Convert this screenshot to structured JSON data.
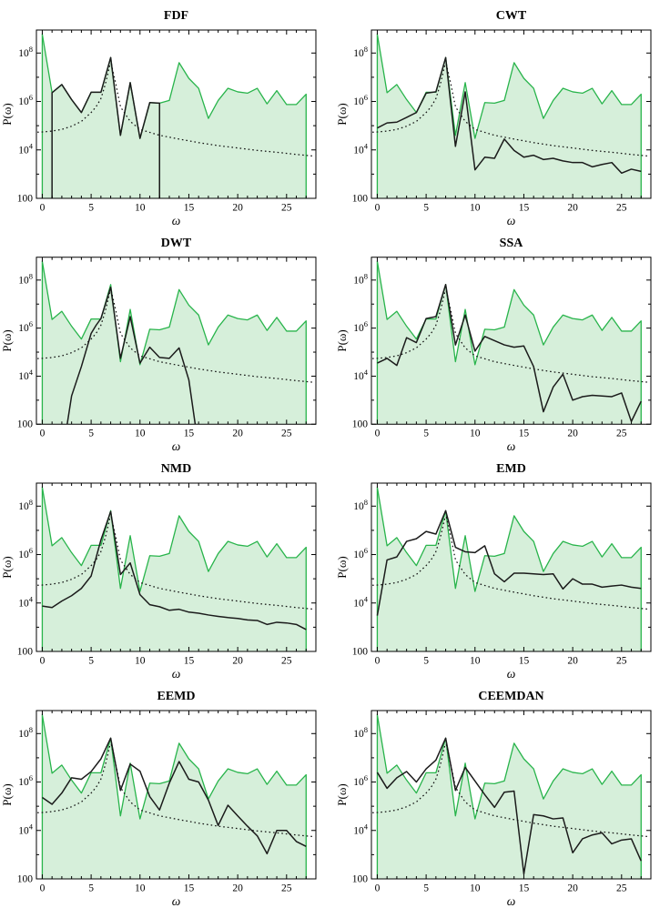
{
  "figure": {
    "description": "Comparison of power spectra P(omega) of components extracted by eight methods from a noisy signal",
    "background": "#ffffff"
  },
  "chart_data": {
    "type": "line",
    "layout": "4x2-grid",
    "xlabel": "ω",
    "ylabel": "P(ω)",
    "x_axis": {
      "min": -0.6,
      "max": 28.0,
      "major_ticks": [
        0,
        5,
        10,
        15,
        20,
        25
      ],
      "minor_tick_step": 1
    },
    "y_axis": {
      "scale": "log",
      "min_log10": 2,
      "max_log10": 8.95,
      "major_ticks": [
        {
          "log10": 2,
          "text": "100",
          "sup": ""
        },
        {
          "log10": 4,
          "text": "10",
          "sup": "4"
        },
        {
          "log10": 6,
          "text": "10",
          "sup": "6"
        },
        {
          "log10": 8,
          "text": "10",
          "sup": "8"
        }
      ],
      "minor_ticks_log10": [
        3,
        5,
        7
      ]
    },
    "colors": {
      "noisy_line": "#28b44b",
      "noisy_fill": "#d6efda",
      "component_line": "#1b1b1b",
      "reference_dotted": "#111111"
    },
    "shared_noisy_spectrum": {
      "name": "noisy signal spectrum (green filled)",
      "x": [
        0,
        1,
        2,
        3,
        4,
        5,
        6,
        7,
        8,
        9,
        10,
        11,
        12,
        13,
        14,
        15,
        16,
        17,
        18,
        19,
        20,
        21,
        22,
        23,
        24,
        25,
        26,
        27
      ],
      "y": [
        600000000.0,
        2300000.0,
        5000000.0,
        1200000.0,
        350000.0,
        2400000.0,
        2400000.0,
        65000000.0,
        40000.0,
        6000000.0,
        30000.0,
        900000.0,
        850000.0,
        1100000.0,
        40000000.0,
        9000000.0,
        3500000.0,
        200000.0,
        1100000.0,
        3500000.0,
        2500000.0,
        2200000.0,
        3500000.0,
        800000.0,
        2800000.0,
        750000.0,
        750000.0,
        2000000.0
      ]
    },
    "reference_curve": {
      "name": "theoretical component spectrum (dotted)",
      "style": "dotted",
      "x": [
        -0.5,
        0,
        1,
        2,
        3,
        4,
        5,
        5.5,
        6,
        6.5,
        7,
        7.5,
        8,
        9,
        10,
        12,
        14,
        16,
        18,
        20,
        22,
        24,
        26,
        27.9
      ],
      "y": [
        54000.0,
        55000.0,
        60000.0,
        70000.0,
        95000.0,
        150000.0,
        350000.0,
        600000.0,
        1300000.0,
        6000000.0,
        45000000.0,
        6000000.0,
        600000.0,
        150000.0,
        70000.0,
        40000.0,
        28000.0,
        20000.0,
        15000.0,
        12000.0,
        9500.0,
        8000.0,
        6500.0,
        5500.0
      ]
    },
    "panels": [
      {
        "title": "FDF",
        "component": {
          "x": [
            1,
            1,
            2,
            3,
            4,
            5,
            6,
            7,
            8,
            9,
            10,
            11,
            12,
            12
          ],
          "y": [
            100.0,
            2300000.0,
            5000000.0,
            1200000.0,
            350000.0,
            2400000.0,
            2400000.0,
            65000000.0,
            40000.0,
            6000000.0,
            30000.0,
            900000.0,
            850000.0,
            100.0
          ]
        }
      },
      {
        "title": "CWT",
        "component": {
          "x": [
            0,
            1,
            2,
            3,
            4,
            5,
            6,
            7,
            8,
            9,
            10,
            11,
            12,
            13,
            14,
            15,
            16,
            17,
            18,
            19,
            20,
            21,
            22,
            23,
            24,
            25,
            26,
            27
          ],
          "y": [
            80000.0,
            130000.0,
            140000.0,
            220000.0,
            350000.0,
            2200000.0,
            2500000.0,
            65000000.0,
            14000.0,
            2500000.0,
            1500.0,
            5000.0,
            4500.0,
            28000.0,
            9500.0,
            5000.0,
            6000.0,
            4000.0,
            4500.0,
            3500.0,
            3000.0,
            3000.0,
            2000.0,
            2500.0,
            3000.0,
            1100.0,
            1600.0,
            1300.0
          ]
        }
      },
      {
        "title": "DWT",
        "component": {
          "x": [
            2.55,
            3,
            4,
            5,
            5.5,
            6,
            7,
            8,
            9,
            10,
            11,
            12,
            13,
            14,
            15,
            15.65
          ],
          "y": [
            100.0,
            1500.0,
            25000.0,
            600000.0,
            1300000.0,
            2500000.0,
            50000000.0,
            55000.0,
            3000000.0,
            35000.0,
            160000.0,
            60000.0,
            55000.0,
            150000.0,
            7000.0,
            100.0
          ]
        }
      },
      {
        "title": "SSA",
        "component": {
          "x": [
            0,
            1,
            2,
            3,
            4,
            5,
            6,
            7,
            8,
            9,
            10,
            11,
            12,
            13,
            14,
            15,
            16,
            17,
            18,
            19,
            20,
            21,
            22,
            23,
            24,
            25,
            26,
            27
          ],
          "y": [
            35000.0,
            55000.0,
            28000.0,
            400000.0,
            250000.0,
            2500000.0,
            3000000.0,
            65000000.0,
            200000.0,
            3500000.0,
            110000.0,
            450000.0,
            300000.0,
            200000.0,
            160000.0,
            180000.0,
            25000.0,
            330.0,
            3500.0,
            12000.0,
            1000.0,
            1400.0,
            1600.0,
            1500.0,
            1400.0,
            2000.0,
            130.0,
            900.0
          ]
        }
      },
      {
        "title": "NMD",
        "component": {
          "x": [
            0,
            1,
            2,
            3,
            4,
            5,
            6,
            7,
            8,
            9,
            10,
            11,
            12,
            13,
            14,
            15,
            16,
            17,
            18,
            19,
            20,
            21,
            22,
            23,
            24,
            25,
            26,
            27
          ],
          "y": [
            7500.0,
            6500.0,
            12000.0,
            20000.0,
            40000.0,
            130000.0,
            4000000.0,
            60000000.0,
            150000.0,
            450000.0,
            22000.0,
            8500.0,
            7000.0,
            5000.0,
            5500.0,
            4200.0,
            3800.0,
            3200.0,
            2800.0,
            2500.0,
            2300.0,
            2000.0,
            1900.0,
            1300.0,
            1600.0,
            1500.0,
            1300.0,
            800.0
          ]
        }
      },
      {
        "title": "EMD",
        "component": {
          "x": [
            0,
            1,
            2,
            3,
            4,
            5,
            6,
            7,
            8,
            9,
            10,
            11,
            12,
            13,
            14,
            15,
            16,
            17,
            18,
            19,
            20,
            21,
            22,
            23,
            24,
            25,
            26,
            27
          ],
          "y": [
            3000.0,
            600000.0,
            800000.0,
            3500000.0,
            4500000.0,
            9000000.0,
            7000000.0,
            65000000.0,
            2000000.0,
            1300000.0,
            1200000.0,
            2300000.0,
            160000.0,
            75000.0,
            170000.0,
            170000.0,
            160000.0,
            150000.0,
            160000.0,
            38000.0,
            100000.0,
            60000.0,
            60000.0,
            45000.0,
            50000.0,
            55000.0,
            45000.0,
            40000.0
          ]
        }
      },
      {
        "title": "EEMD",
        "component": {
          "x": [
            0,
            1,
            2,
            3,
            4,
            5,
            6,
            7,
            8,
            9,
            10,
            11,
            12,
            13,
            14,
            15,
            16,
            17,
            18,
            19,
            20,
            21,
            22,
            23,
            24,
            25,
            26,
            27
          ],
          "y": [
            230000.0,
            120000.0,
            350000.0,
            1500000.0,
            1300000.0,
            2700000.0,
            9000000.0,
            65000000.0,
            450000.0,
            5500000.0,
            2800000.0,
            250000.0,
            70000.0,
            900000.0,
            7000000.0,
            1300000.0,
            1000000.0,
            180000.0,
            16000.0,
            110000.0,
            40000.0,
            15000.0,
            6000.0,
            1100.0,
            10000.0,
            10000.0,
            3500.0,
            2200.0
          ]
        }
      },
      {
        "title": "CEEMDAN",
        "component": {
          "x": [
            0,
            1,
            2,
            3,
            4,
            5,
            6,
            7,
            8,
            9,
            10,
            11,
            12,
            13,
            14,
            15,
            16,
            17,
            18,
            19,
            20,
            21,
            22,
            23,
            24,
            25,
            26,
            27
          ],
          "y": [
            2500000.0,
            550000.0,
            1500000.0,
            2700000.0,
            1000000.0,
            3500000.0,
            8000000.0,
            65000000.0,
            450000.0,
            4000000.0,
            1100000.0,
            300000.0,
            90000.0,
            380000.0,
            420000.0,
            160.0,
            45000.0,
            40000.0,
            30000.0,
            33000.0,
            1200.0,
            4500.0,
            6500.0,
            8000.0,
            2800.0,
            4000.0,
            4500.0,
            550.0
          ]
        }
      }
    ]
  }
}
